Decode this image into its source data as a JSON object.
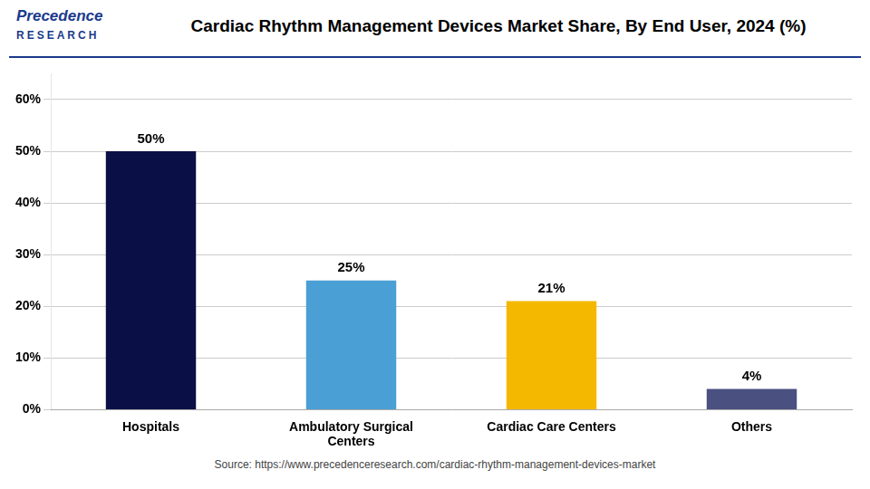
{
  "chart_data": {
    "type": "bar",
    "title": "Cardiac Rhythm Management Devices Market Share, By End User, 2024 (%)",
    "annotations": [
      "Precedence",
      "RESEARCH",
      "Source: https://www.precedenceresearch.com/cardiac-rhythm-management-devices-market"
    ],
    "categories": [
      "Hospitals",
      "Ambulatory Surgical\nCenters",
      "Cardiac Care Centers",
      "Others"
    ],
    "values": [
      50,
      25,
      21,
      4
    ],
    "value_labels": [
      "50%",
      "25%",
      "21%",
      "4%"
    ],
    "colors": [
      "#0a1045",
      "#4a9fd4",
      "#f5b800",
      "#4a5080"
    ],
    "data_labels": true,
    "ylim": [
      0,
      65
    ],
    "yticks": [
      {
        "value": 0,
        "label": "0%"
      },
      {
        "value": 10,
        "label": "10%"
      },
      {
        "value": 20,
        "label": "20%"
      },
      {
        "value": 30,
        "label": "30%"
      },
      {
        "value": 40,
        "label": "40%"
      },
      {
        "value": 50,
        "label": "50%"
      },
      {
        "value": 60,
        "label": "60%"
      }
    ],
    "grid": true
  }
}
